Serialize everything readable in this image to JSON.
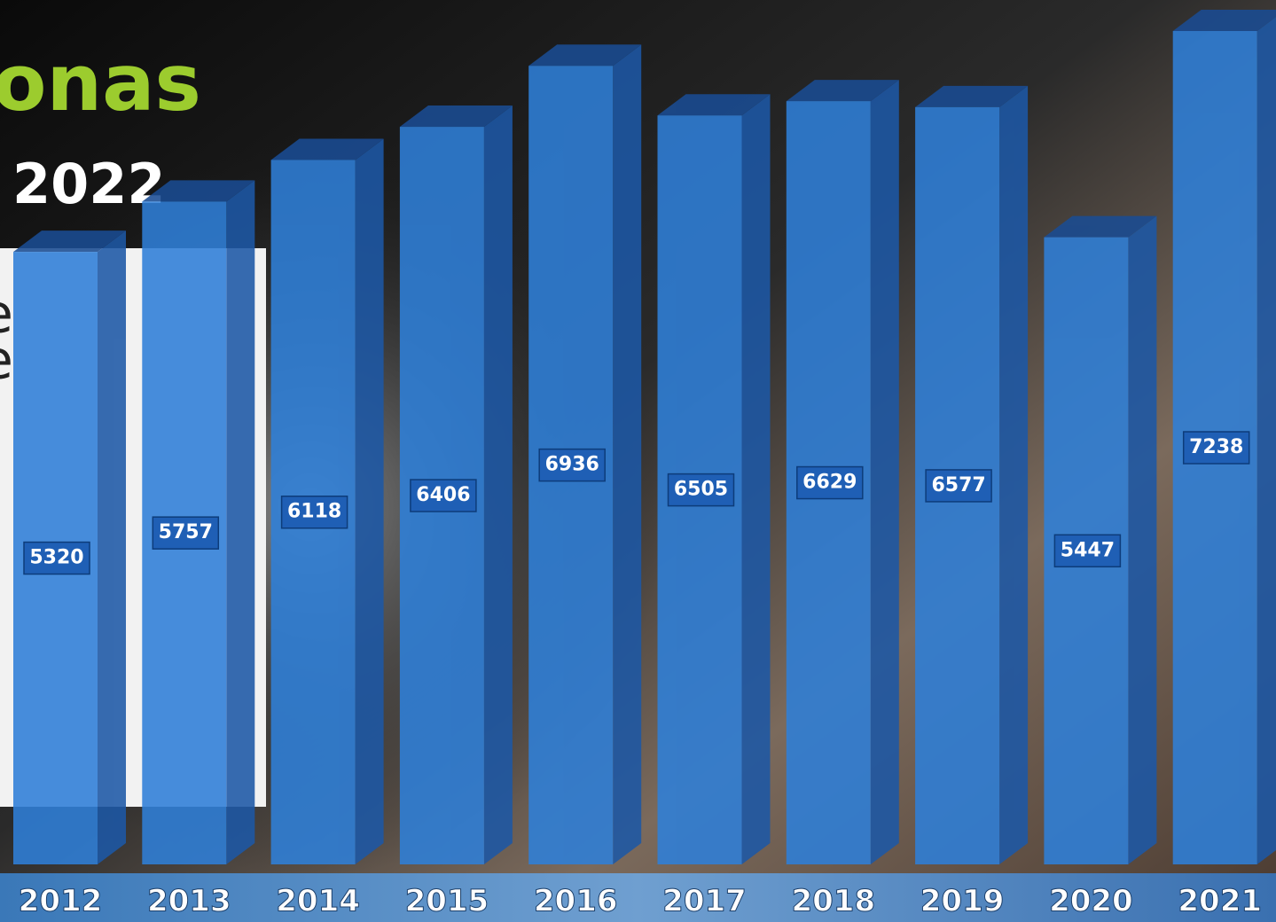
{
  "chart_data": {
    "type": "bar3d",
    "title": "onas",
    "subtitle": "2022",
    "annotations": [
      "e",
      "e"
    ],
    "categories": [
      "2012",
      "2013",
      "2014",
      "2015",
      "2016",
      "2017",
      "2018",
      "2019",
      "2020",
      "2021"
    ],
    "values": [
      5320,
      5757,
      6118,
      6406,
      6936,
      6505,
      6629,
      6577,
      5447,
      7238
    ],
    "color": "#2f7fd8"
  }
}
